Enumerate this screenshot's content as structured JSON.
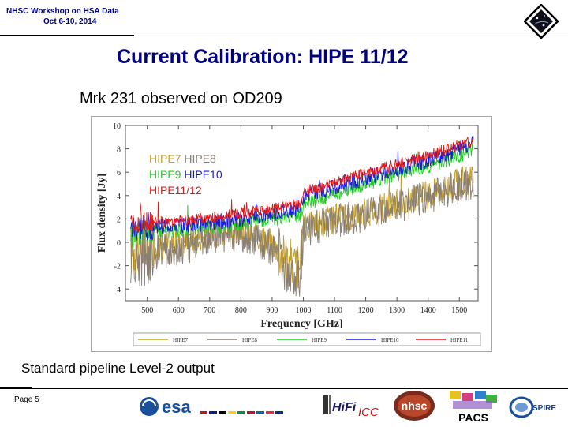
{
  "header": {
    "line1": "NHSC Workshop on HSA Data",
    "line2": "Oct 6-10, 2014"
  },
  "slide": {
    "title": "Current Calibration:  HIPE 11/12",
    "subtitle": "Mrk 231 observed on OD209",
    "caption": "Standard pipeline Level-2 output",
    "page_label": "Page 5"
  },
  "logos": {
    "esa": "esa",
    "hifi": "HiFi",
    "icc": "ICC",
    "nhsc": "nhsc",
    "pacs": "PACS",
    "spire": "SPIRE"
  },
  "colors": {
    "title": "#000080",
    "hipe7": "#c8a020",
    "hipe8": "#8a7f72",
    "hipe9": "#22cc22",
    "hipe10": "#1a1adf",
    "hipe11": "#e01818"
  },
  "chart_data": {
    "type": "line",
    "xlabel": "Frequency [GHz]",
    "ylabel": "Flux density [Jy]",
    "xlim": [
      430,
      1560
    ],
    "ylim": [
      -5,
      10
    ],
    "xticks": [
      500,
      600,
      700,
      800,
      900,
      1000,
      1100,
      1200,
      1300,
      1400,
      1500
    ],
    "yticks": [
      -4,
      -2,
      0,
      2,
      4,
      6,
      8,
      10
    ],
    "legend_inset": [
      [
        {
          "text": "HIPE7",
          "series": "HIPE7"
        },
        {
          "text": " HIPE8",
          "series": "HIPE8"
        }
      ],
      [
        {
          "text": "HIPE9",
          "series": "HIPE9"
        },
        {
          "text": " HIPE10",
          "series": "HIPE10"
        }
      ],
      [
        {
          "text": "HIPE11/12",
          "series": "HIPE11"
        }
      ]
    ],
    "legend_bottom": [
      "HIPE7",
      "HIPE8",
      "HIPE9",
      "HIPE10",
      "HIPE11"
    ],
    "series": [
      {
        "name": "HIPE7",
        "color": "#c8a020",
        "x": [
          447,
          500,
          600,
          700,
          800,
          900,
          950,
          990,
          1000,
          1100,
          1200,
          1300,
          1400,
          1450,
          1500,
          1546
        ],
        "y": [
          -0.6,
          -0.4,
          0.0,
          0.8,
          1.1,
          0.0,
          -1.6,
          -2.0,
          1.3,
          2.0,
          2.6,
          3.3,
          4.1,
          4.6,
          5.1,
          5.5
        ]
      },
      {
        "name": "HIPE8",
        "color": "#8a7f72",
        "x": [
          447,
          500,
          600,
          700,
          800,
          900,
          950,
          990,
          1000,
          1100,
          1200,
          1300,
          1400,
          1450,
          1500,
          1546
        ],
        "y": [
          -1.4,
          -1.0,
          -0.6,
          0.3,
          0.7,
          -0.5,
          -2.0,
          -2.4,
          1.0,
          1.7,
          2.3,
          3.0,
          3.8,
          4.2,
          4.7,
          5.1
        ]
      },
      {
        "name": "HIPE9",
        "color": "#22cc22",
        "x": [
          447,
          500,
          600,
          700,
          800,
          900,
          950,
          990,
          1000,
          1100,
          1200,
          1300,
          1400,
          1450,
          1500,
          1546
        ],
        "y": [
          0.5,
          1.0,
          1.0,
          1.3,
          1.6,
          1.9,
          2.1,
          2.2,
          3.2,
          4.1,
          5.0,
          5.8,
          6.5,
          6.9,
          7.4,
          7.9
        ]
      },
      {
        "name": "HIPE10",
        "color": "#1a1adf",
        "x": [
          447,
          500,
          600,
          700,
          800,
          900,
          950,
          990,
          1000,
          1100,
          1200,
          1300,
          1400,
          1450,
          1500,
          1546
        ],
        "y": [
          1.0,
          1.4,
          1.4,
          1.7,
          2.0,
          2.4,
          2.7,
          2.9,
          3.9,
          4.7,
          5.5,
          6.3,
          7.0,
          7.5,
          8.0,
          8.5
        ]
      },
      {
        "name": "HIPE11",
        "color": "#e01818",
        "x": [
          447,
          500,
          600,
          700,
          800,
          900,
          950,
          990,
          1000,
          1100,
          1200,
          1300,
          1400,
          1450,
          1500,
          1546
        ],
        "y": [
          1.5,
          1.8,
          1.8,
          2.1,
          2.5,
          2.9,
          3.1,
          3.3,
          4.3,
          5.1,
          5.9,
          6.7,
          7.4,
          7.9,
          8.3,
          8.7
        ]
      }
    ]
  }
}
